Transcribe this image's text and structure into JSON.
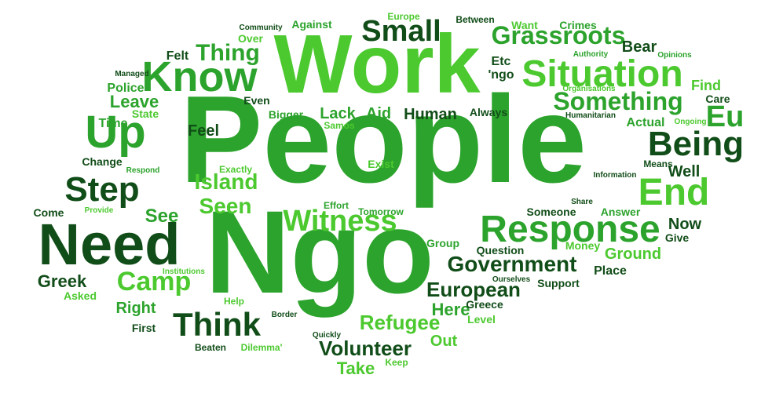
{
  "colors": {
    "background": "#ffffff",
    "dark_green": "#114d18",
    "green": "#2ca32c",
    "bright_green": "#4cc92f"
  },
  "words": [
    {
      "text": "People",
      "color": "#2ca32c"
    },
    {
      "text": "Ngo",
      "color": "#2ca32c"
    },
    {
      "text": "Work",
      "color": "#4cc92f"
    },
    {
      "text": "Know",
      "color": "#2ca32c"
    },
    {
      "text": "Need",
      "color": "#114d18"
    },
    {
      "text": "Step",
      "color": "#114d18"
    },
    {
      "text": "Up",
      "color": "#2ca32c"
    },
    {
      "text": "Situation",
      "color": "#4cc92f"
    },
    {
      "text": "Response",
      "color": "#2ca32c"
    },
    {
      "text": "Being",
      "color": "#114d18"
    },
    {
      "text": "End",
      "color": "#4cc92f"
    },
    {
      "text": "Small",
      "color": "#114d18"
    },
    {
      "text": "Grassroots",
      "color": "#2ca32c"
    },
    {
      "text": "Something",
      "color": "#2ca32c"
    },
    {
      "text": "Witness",
      "color": "#4cc92f"
    },
    {
      "text": "Think",
      "color": "#114d18"
    },
    {
      "text": "Camp",
      "color": "#4cc92f"
    },
    {
      "text": "Government",
      "color": "#114d18"
    },
    {
      "text": "Eu",
      "color": "#2ca32c"
    },
    {
      "text": "Volunteer",
      "color": "#114d18"
    },
    {
      "text": "European",
      "color": "#114d18"
    },
    {
      "text": "Refugee",
      "color": "#4cc92f"
    },
    {
      "text": "Island",
      "color": "#4cc92f"
    },
    {
      "text": "Seen",
      "color": "#4cc92f"
    },
    {
      "text": "See",
      "color": "#2ca32c"
    },
    {
      "text": "Thing",
      "color": "#2ca32c"
    },
    {
      "text": "Leave",
      "color": "#2ca32c"
    },
    {
      "text": "Greek",
      "color": "#114d18"
    },
    {
      "text": "Right",
      "color": "#2ca32c"
    },
    {
      "text": "Here",
      "color": "#2ca32c"
    },
    {
      "text": "Ground",
      "color": "#4cc92f"
    },
    {
      "text": "Human",
      "color": "#114d18"
    },
    {
      "text": "Lack",
      "color": "#2ca32c"
    },
    {
      "text": "Aid",
      "color": "#2ca32c"
    },
    {
      "text": "Take",
      "color": "#4cc92f"
    },
    {
      "text": "Out",
      "color": "#4cc92f"
    },
    {
      "text": "Well",
      "color": "#114d18"
    },
    {
      "text": "Now",
      "color": "#114d18"
    },
    {
      "text": "Feel",
      "color": "#114d18"
    },
    {
      "text": "Actual",
      "color": "#2ca32c"
    },
    {
      "text": "Bear",
      "color": "#114d18"
    },
    {
      "text": "Find",
      "color": "#4cc92f"
    },
    {
      "text": "Felt",
      "color": "#114d18"
    },
    {
      "text": "Etc",
      "color": "#114d18"
    },
    {
      "text": "'ngo",
      "color": "#114d18"
    },
    {
      "text": "Place",
      "color": "#114d18"
    },
    {
      "text": "Time",
      "color": "#2ca32c"
    },
    {
      "text": "Police",
      "color": "#2ca32c"
    },
    {
      "text": "Give",
      "color": "#114d18"
    },
    {
      "text": "Come",
      "color": "#114d18"
    },
    {
      "text": "First",
      "color": "#114d18"
    },
    {
      "text": "Even",
      "color": "#114d18"
    },
    {
      "text": "Against",
      "color": "#2ca32c"
    },
    {
      "text": "Over",
      "color": "#4cc92f"
    },
    {
      "text": "Bigger",
      "color": "#2ca32c"
    },
    {
      "text": "Always",
      "color": "#114d18"
    },
    {
      "text": "Care",
      "color": "#114d18"
    },
    {
      "text": "Someone",
      "color": "#114d18"
    },
    {
      "text": "Answer",
      "color": "#2ca32c"
    },
    {
      "text": "Support",
      "color": "#114d18"
    },
    {
      "text": "Question",
      "color": "#114d18"
    },
    {
      "text": "Group",
      "color": "#2ca32c"
    },
    {
      "text": "Money",
      "color": "#4cc92f"
    },
    {
      "text": "Level",
      "color": "#4cc92f"
    },
    {
      "text": "Greece",
      "color": "#114d18"
    },
    {
      "text": "Exist",
      "color": "#4cc92f"
    },
    {
      "text": "Change",
      "color": "#114d18"
    },
    {
      "text": "State",
      "color": "#4cc92f"
    },
    {
      "text": "Asked",
      "color": "#4cc92f"
    },
    {
      "text": "Help",
      "color": "#4cc92f"
    },
    {
      "text": "Beaten",
      "color": "#114d18"
    },
    {
      "text": "Dilemma'",
      "color": "#4cc92f"
    },
    {
      "text": "Keep",
      "color": "#4cc92f"
    },
    {
      "text": "Quickly",
      "color": "#114d18"
    },
    {
      "text": "Border",
      "color": "#114d18"
    },
    {
      "text": "Tomorrow",
      "color": "#2ca32c"
    },
    {
      "text": "Effort",
      "color": "#2ca32c"
    },
    {
      "text": "Exactly",
      "color": "#4cc92f"
    },
    {
      "text": "Provide",
      "color": "#4cc92f"
    },
    {
      "text": "Respond",
      "color": "#2ca32c"
    },
    {
      "text": "Institutions",
      "color": "#4cc92f"
    },
    {
      "text": "Samos",
      "color": "#4cc92f"
    },
    {
      "text": "Community",
      "color": "#114d18"
    },
    {
      "text": "Europe",
      "color": "#4cc92f"
    },
    {
      "text": "Between",
      "color": "#114d18"
    },
    {
      "text": "Want",
      "color": "#4cc92f"
    },
    {
      "text": "Crimes",
      "color": "#2ca32c"
    },
    {
      "text": "Authority",
      "color": "#2ca32c"
    },
    {
      "text": "Opinions",
      "color": "#2ca32c"
    },
    {
      "text": "Managed",
      "color": "#114d18"
    },
    {
      "text": "Organisations",
      "color": "#4cc92f"
    },
    {
      "text": "Humanitarian",
      "color": "#114d18"
    },
    {
      "text": "Ongoing",
      "color": "#4cc92f"
    },
    {
      "text": "Means",
      "color": "#114d18"
    },
    {
      "text": "Information",
      "color": "#114d18"
    },
    {
      "text": "Share",
      "color": "#114d18"
    },
    {
      "text": "Ourselves",
      "color": "#114d18"
    }
  ]
}
